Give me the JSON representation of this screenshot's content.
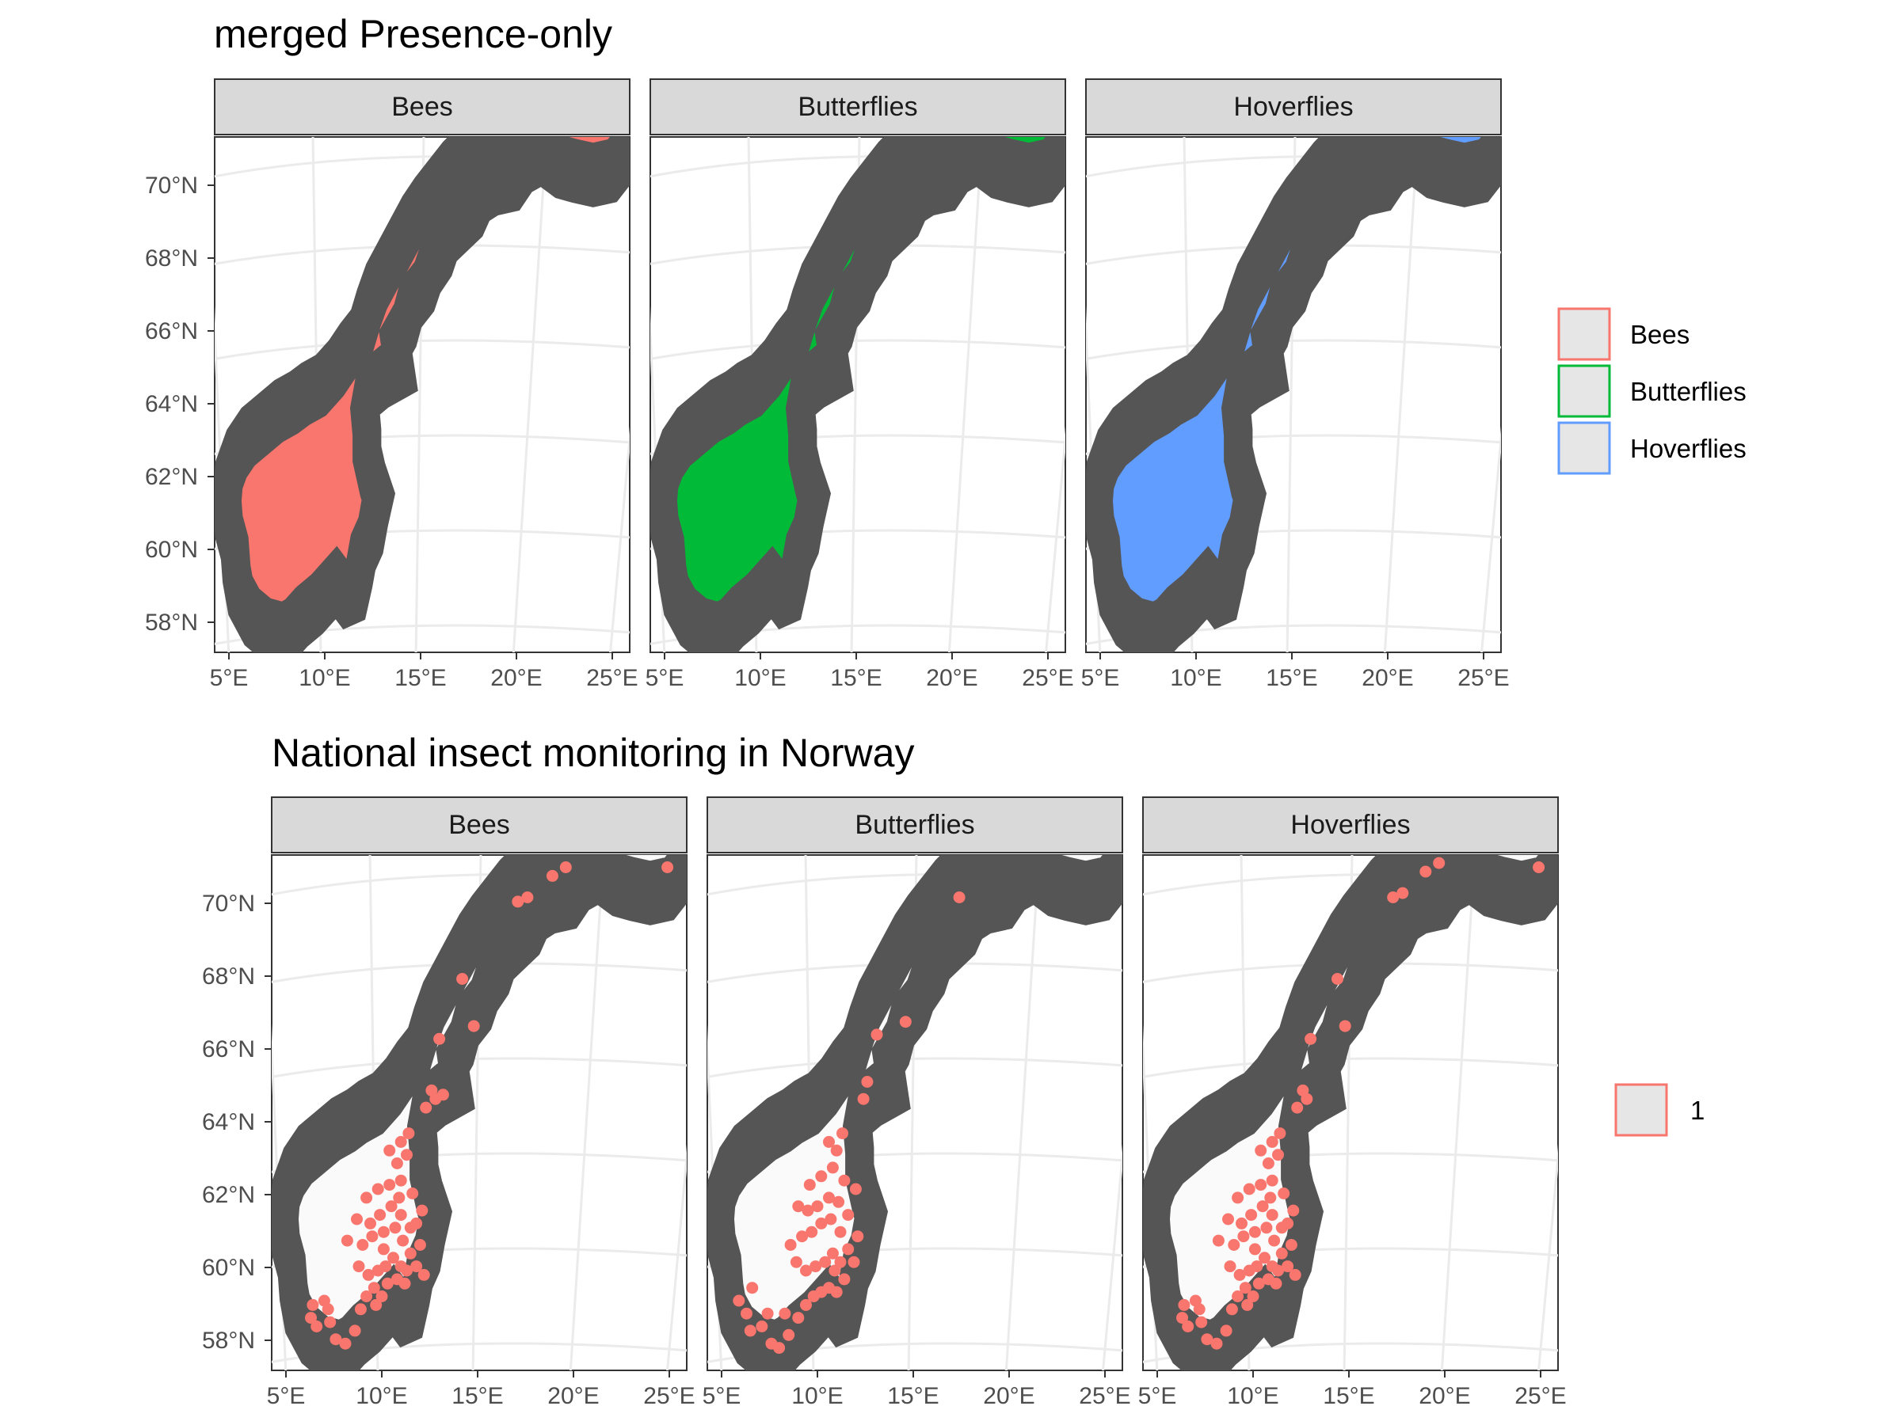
{
  "chart_data": [
    {
      "type": "scatter",
      "title": "merged Presence-only",
      "facets": [
        "Bees",
        "Butterflies",
        "Hoverflies"
      ],
      "x_ticks": [
        "5°E",
        "10°E",
        "15°E",
        "20°E",
        "25°E"
      ],
      "y_ticks": [
        "58°N",
        "60°N",
        "62°N",
        "64°N",
        "66°N",
        "68°N",
        "70°N"
      ],
      "xlim": [
        5,
        25
      ],
      "ylim": [
        57.5,
        71
      ],
      "grid": true,
      "legend_position": "right",
      "legend": [
        {
          "label": "Bees",
          "color": "#F8766D"
        },
        {
          "label": "Butterflies",
          "color": "#00BA38"
        },
        {
          "label": "Hoverflies",
          "color": "#619CFF"
        }
      ],
      "series": [
        {
          "facet": "Bees",
          "color": "#F8766D",
          "coverage": "dense occurrence points covering most of Norway"
        },
        {
          "facet": "Butterflies",
          "color": "#00BA38",
          "coverage": "dense occurrence points covering most of Norway"
        },
        {
          "facet": "Hoverflies",
          "color": "#619CFF",
          "coverage": "dense occurrence points covering most of Norway"
        }
      ]
    },
    {
      "type": "scatter",
      "title": "National insect monitoring in Norway",
      "facets": [
        "Bees",
        "Butterflies",
        "Hoverflies"
      ],
      "x_ticks": [
        "5°E",
        "10°E",
        "15°E",
        "20°E",
        "25°E"
      ],
      "y_ticks": [
        "58°N",
        "60°N",
        "62°N",
        "64°N",
        "66°N",
        "68°N",
        "70°N"
      ],
      "xlim": [
        5,
        25
      ],
      "ylim": [
        57.5,
        71
      ],
      "grid": true,
      "legend_position": "right",
      "legend": [
        {
          "label": "1",
          "color": "#F8766D"
        }
      ],
      "series": [
        {
          "facet": "Bees",
          "color": "#F8766D",
          "points": [
            [
              6.3,
              58.8
            ],
            [
              6.6,
              58.6
            ],
            [
              6.4,
              59.1
            ],
            [
              7.0,
              59.2
            ],
            [
              7.6,
              58.3
            ],
            [
              8.1,
              58.2
            ],
            [
              8.6,
              58.5
            ],
            [
              7.3,
              58.7
            ],
            [
              8.9,
              59.0
            ],
            [
              9.2,
              59.3
            ],
            [
              9.6,
              59.5
            ],
            [
              10.0,
              59.3
            ],
            [
              10.3,
              59.6
            ],
            [
              10.8,
              59.7
            ],
            [
              11.2,
              59.6
            ],
            [
              11.0,
              60.0
            ],
            [
              10.6,
              60.2
            ],
            [
              10.2,
              60.0
            ],
            [
              9.8,
              59.9
            ],
            [
              9.3,
              59.8
            ],
            [
              8.8,
              60.0
            ],
            [
              9.0,
              60.5
            ],
            [
              9.5,
              60.7
            ],
            [
              10.1,
              60.8
            ],
            [
              10.7,
              60.9
            ],
            [
              11.1,
              60.6
            ],
            [
              11.5,
              60.3
            ],
            [
              11.8,
              60.0
            ],
            [
              12.0,
              60.5
            ],
            [
              11.5,
              60.9
            ],
            [
              11.0,
              61.2
            ],
            [
              10.5,
              61.4
            ],
            [
              9.9,
              61.2
            ],
            [
              9.4,
              61.0
            ],
            [
              8.7,
              61.1
            ],
            [
              9.2,
              61.6
            ],
            [
              9.8,
              61.8
            ],
            [
              10.4,
              61.9
            ],
            [
              11.0,
              62.0
            ],
            [
              11.6,
              61.7
            ],
            [
              12.1,
              61.3
            ],
            [
              10.8,
              62.4
            ],
            [
              11.3,
              62.6
            ],
            [
              11.0,
              62.9
            ],
            [
              11.4,
              63.1
            ],
            [
              10.4,
              62.7
            ],
            [
              12.3,
              63.7
            ],
            [
              12.8,
              63.9
            ],
            [
              12.6,
              64.1
            ],
            [
              13.2,
              64.0
            ],
            [
              13.0,
              65.3
            ],
            [
              14.8,
              65.6
            ],
            [
              14.2,
              66.7
            ],
            [
              17.1,
              68.5
            ],
            [
              17.6,
              68.6
            ],
            [
              18.9,
              69.1
            ],
            [
              19.6,
              69.3
            ],
            [
              24.9,
              69.3
            ],
            [
              11.8,
              61.0
            ],
            [
              10.1,
              60.4
            ],
            [
              11.3,
              59.9
            ],
            [
              12.2,
              59.8
            ],
            [
              7.2,
              59.0
            ],
            [
              9.7,
              59.1
            ],
            [
              10.9,
              61.6
            ],
            [
              8.2,
              60.6
            ]
          ]
        },
        {
          "facet": "Butterflies",
          "color": "#F8766D",
          "points": [
            [
              5.9,
              59.2
            ],
            [
              6.3,
              58.9
            ],
            [
              6.5,
              58.5
            ],
            [
              7.1,
              58.6
            ],
            [
              7.6,
              58.2
            ],
            [
              8.0,
              58.1
            ],
            [
              8.5,
              58.4
            ],
            [
              9.0,
              58.8
            ],
            [
              9.4,
              59.1
            ],
            [
              9.8,
              59.3
            ],
            [
              10.2,
              59.4
            ],
            [
              10.6,
              59.5
            ],
            [
              11.0,
              59.4
            ],
            [
              11.4,
              59.7
            ],
            [
              11.2,
              60.1
            ],
            [
              10.8,
              60.3
            ],
            [
              10.4,
              60.1
            ],
            [
              9.9,
              60.0
            ],
            [
              9.4,
              59.9
            ],
            [
              8.9,
              60.1
            ],
            [
              8.6,
              60.5
            ],
            [
              9.2,
              60.7
            ],
            [
              9.7,
              60.8
            ],
            [
              10.2,
              61.0
            ],
            [
              10.7,
              61.1
            ],
            [
              11.2,
              60.8
            ],
            [
              11.6,
              60.4
            ],
            [
              11.9,
              60.1
            ],
            [
              12.1,
              60.7
            ],
            [
              11.6,
              61.2
            ],
            [
              11.1,
              61.5
            ],
            [
              10.6,
              61.6
            ],
            [
              10.0,
              61.4
            ],
            [
              9.5,
              61.3
            ],
            [
              9.0,
              61.4
            ],
            [
              9.6,
              61.9
            ],
            [
              10.2,
              62.1
            ],
            [
              10.8,
              62.3
            ],
            [
              11.4,
              62.0
            ],
            [
              11.0,
              62.7
            ],
            [
              10.6,
              62.9
            ],
            [
              11.3,
              63.1
            ],
            [
              12.4,
              63.9
            ],
            [
              12.6,
              64.3
            ],
            [
              13.1,
              65.4
            ],
            [
              14.6,
              65.7
            ],
            [
              17.4,
              68.6
            ],
            [
              6.6,
              59.5
            ],
            [
              7.4,
              58.9
            ],
            [
              8.3,
              58.9
            ],
            [
              10.9,
              59.9
            ],
            [
              12.0,
              61.8
            ]
          ]
        },
        {
          "facet": "Hoverflies",
          "color": "#F8766D",
          "points": [
            [
              6.3,
              58.8
            ],
            [
              6.6,
              58.6
            ],
            [
              6.4,
              59.1
            ],
            [
              7.0,
              59.2
            ],
            [
              7.6,
              58.3
            ],
            [
              8.1,
              58.2
            ],
            [
              8.6,
              58.5
            ],
            [
              7.3,
              58.7
            ],
            [
              8.9,
              59.0
            ],
            [
              9.2,
              59.3
            ],
            [
              9.6,
              59.5
            ],
            [
              10.0,
              59.3
            ],
            [
              10.3,
              59.6
            ],
            [
              10.8,
              59.7
            ],
            [
              11.2,
              59.6
            ],
            [
              11.0,
              60.0
            ],
            [
              10.6,
              60.2
            ],
            [
              10.2,
              60.0
            ],
            [
              9.8,
              59.9
            ],
            [
              9.3,
              59.8
            ],
            [
              8.8,
              60.0
            ],
            [
              9.0,
              60.5
            ],
            [
              9.5,
              60.7
            ],
            [
              10.1,
              60.8
            ],
            [
              10.7,
              60.9
            ],
            [
              11.1,
              60.6
            ],
            [
              11.5,
              60.3
            ],
            [
              11.8,
              60.0
            ],
            [
              12.0,
              60.5
            ],
            [
              11.5,
              60.9
            ],
            [
              11.0,
              61.2
            ],
            [
              10.5,
              61.4
            ],
            [
              9.9,
              61.2
            ],
            [
              9.4,
              61.0
            ],
            [
              8.7,
              61.1
            ],
            [
              9.2,
              61.6
            ],
            [
              9.8,
              61.8
            ],
            [
              10.4,
              61.9
            ],
            [
              11.0,
              62.0
            ],
            [
              11.6,
              61.7
            ],
            [
              12.1,
              61.3
            ],
            [
              10.8,
              62.4
            ],
            [
              11.3,
              62.6
            ],
            [
              11.0,
              62.9
            ],
            [
              11.4,
              63.1
            ],
            [
              10.4,
              62.7
            ],
            [
              12.3,
              63.7
            ],
            [
              12.8,
              63.9
            ],
            [
              12.6,
              64.1
            ],
            [
              13.0,
              65.3
            ],
            [
              14.8,
              65.6
            ],
            [
              14.4,
              66.7
            ],
            [
              17.3,
              68.6
            ],
            [
              17.8,
              68.7
            ],
            [
              19.0,
              69.2
            ],
            [
              19.7,
              69.4
            ],
            [
              23.6,
              69.9
            ],
            [
              24.9,
              69.3
            ],
            [
              11.8,
              61.0
            ],
            [
              10.1,
              60.4
            ],
            [
              11.3,
              59.9
            ],
            [
              12.2,
              59.8
            ],
            [
              7.2,
              59.0
            ],
            [
              9.7,
              59.1
            ],
            [
              10.9,
              61.6
            ],
            [
              8.2,
              60.6
            ]
          ]
        }
      ]
    }
  ]
}
